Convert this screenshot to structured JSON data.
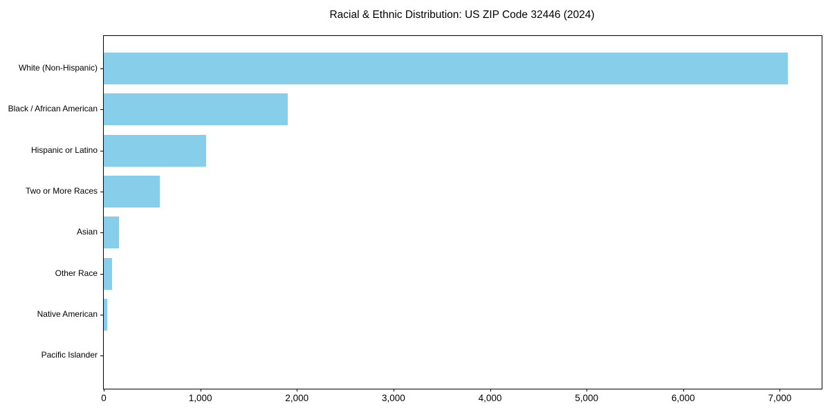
{
  "title": "Racial & Ethnic Distribution: US ZIP Code 32446 (2024)",
  "colors": {
    "bar": "#87CEEB",
    "axis": "#000000",
    "text": "#000000",
    "background": "#ffffff"
  },
  "chart_data": {
    "type": "bar",
    "orientation": "horizontal",
    "title": "Racial & Ethnic Distribution: US ZIP Code 32446 (2024)",
    "xlabel": "",
    "ylabel": "",
    "categories": [
      "White (Non-Hispanic)",
      "Black / African American",
      "Hispanic or Latino",
      "Two or More Races",
      "Asian",
      "Other Race",
      "Native American",
      "Pacific Islander"
    ],
    "values": [
      7080,
      1905,
      1060,
      580,
      155,
      85,
      35,
      0
    ],
    "xlim": [
      0,
      7434
    ],
    "xticks": [
      0,
      1000,
      2000,
      3000,
      4000,
      5000,
      6000,
      7000
    ],
    "xtick_labels": [
      "0",
      "1,000",
      "2,000",
      "3,000",
      "4,000",
      "5,000",
      "6,000",
      "7,000"
    ],
    "bar_color": "#87CEEB",
    "grid": false,
    "legend": null,
    "data_labels": false
  }
}
